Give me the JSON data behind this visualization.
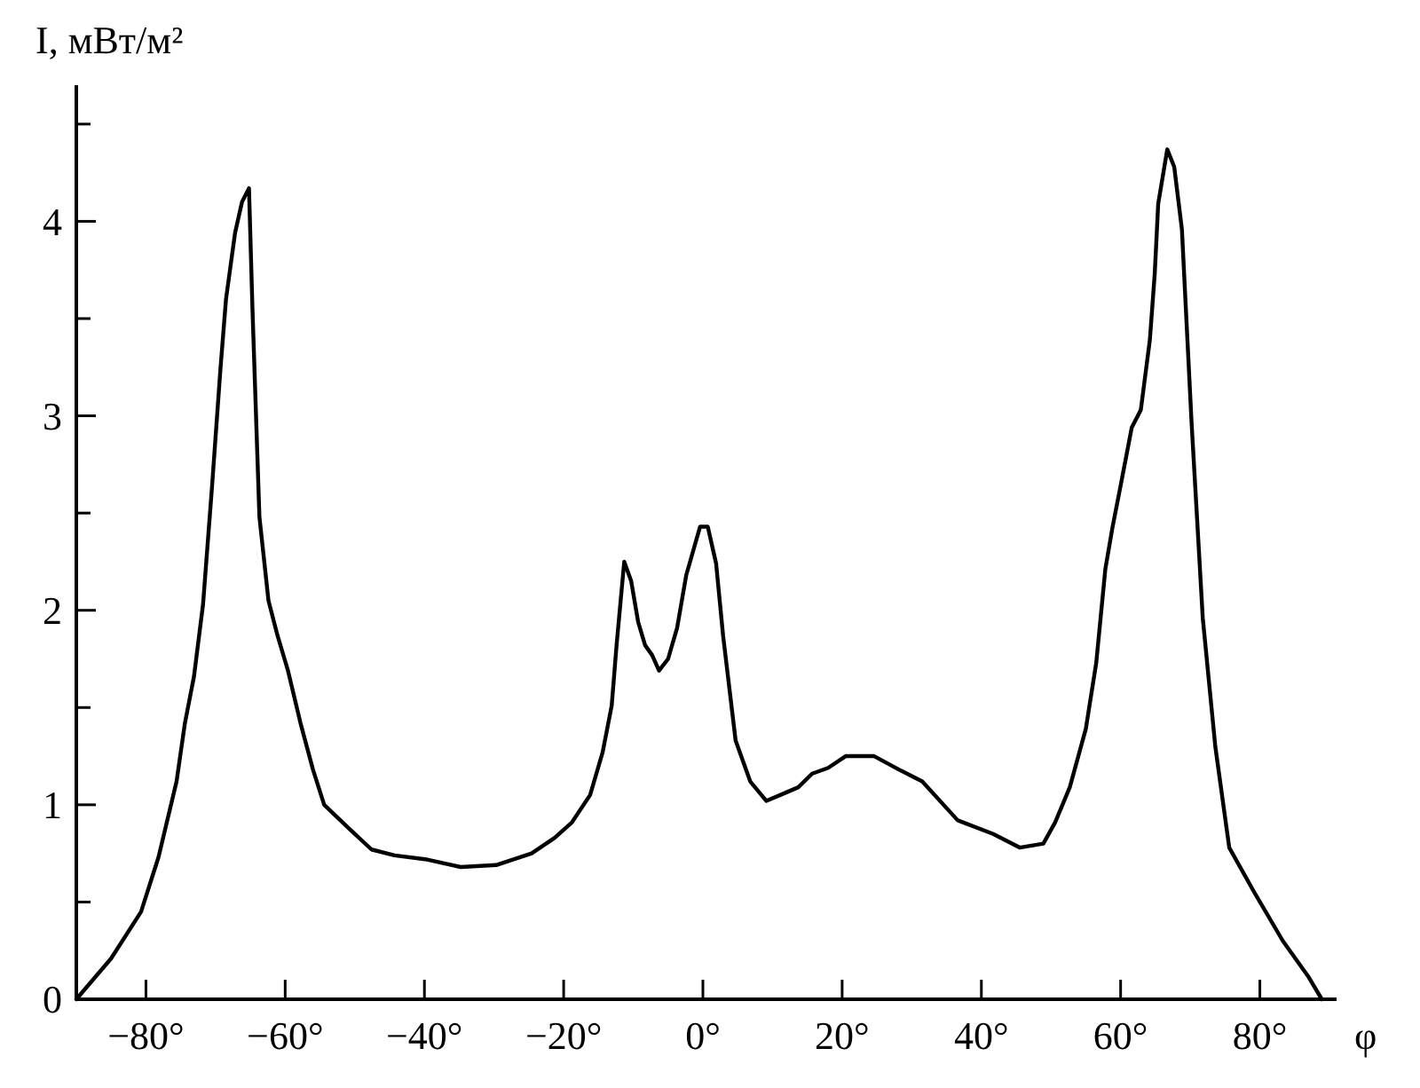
{
  "chart_data": {
    "type": "line",
    "ylabel": "I, мВт/м²",
    "xlabel": "φ",
    "x": [
      -90,
      -85,
      -80.7,
      -78.2,
      -75.6,
      -74.4,
      -73.1,
      -71.8,
      -70.5,
      -69.3,
      -68.5,
      -67.2,
      -66.2,
      -65.2,
      -64.7,
      -63.7,
      -62.4,
      -61.1,
      -59.6,
      -57.8,
      -56,
      -54.4,
      -50.9,
      -47.6,
      -44.3,
      -39.9,
      -34.8,
      -29.7,
      -24.6,
      -21.3,
      -18.8,
      -16.2,
      -14.4,
      -13.1,
      -12.4,
      -11.3,
      -10.3,
      -9.3,
      -8.3,
      -7.3,
      -6.3,
      -5,
      -3.7,
      -2.4,
      -0.4,
      0.7,
      1.9,
      2.9,
      4.7,
      6.8,
      9.1,
      11.1,
      13.7,
      15.7,
      18,
      20.5,
      24.6,
      28.2,
      31.5,
      36.6,
      41.7,
      45.5,
      48.9,
      50.6,
      52.7,
      55,
      56.5,
      57.8,
      58.8,
      60.1,
      61.6,
      62.9,
      64.2,
      64.9,
      65.4,
      66.7,
      67.7,
      68.8,
      70.2,
      71.8,
      73.6,
      75.6,
      79.2,
      83.3,
      86.9,
      88.9
    ],
    "series": [
      {
        "color": "#000000",
        "values": [
          0,
          0.21,
          0.45,
          0.73,
          1.12,
          1.42,
          1.66,
          2.03,
          2.64,
          3.24,
          3.6,
          3.94,
          4.1,
          4.17,
          3.55,
          2.48,
          2.05,
          1.87,
          1.69,
          1.42,
          1.18,
          1,
          0.88,
          0.77,
          0.74,
          0.72,
          0.68,
          0.69,
          0.75,
          0.83,
          0.91,
          1.05,
          1.27,
          1.51,
          1.82,
          2.25,
          2.15,
          1.94,
          1.82,
          1.77,
          1.69,
          1.75,
          1.91,
          2.18,
          2.43,
          2.43,
          2.24,
          1.87,
          1.33,
          1.12,
          1.02,
          1.05,
          1.09,
          1.16,
          1.19,
          1.25,
          1.25,
          1.18,
          1.12,
          0.92,
          0.85,
          0.78,
          0.8,
          0.91,
          1.09,
          1.39,
          1.73,
          2.21,
          2.42,
          2.66,
          2.94,
          3.03,
          3.39,
          3.73,
          4.09,
          4.37,
          4.28,
          3.96,
          2.96,
          1.96,
          1.3,
          0.78,
          0.55,
          0.3,
          0.12,
          0
        ]
      }
    ],
    "xlim": [
      -90,
      90
    ],
    "ylim": [
      0,
      4.7
    ],
    "xticks": [
      {
        "value": -80,
        "label": "−80°"
      },
      {
        "value": -60,
        "label": "−60°"
      },
      {
        "value": -40,
        "label": "−40°"
      },
      {
        "value": -20,
        "label": "−20°"
      },
      {
        "value": 0,
        "label": "0°"
      },
      {
        "value": 20,
        "label": "20°"
      },
      {
        "value": 40,
        "label": "40°"
      },
      {
        "value": 60,
        "label": "60°"
      },
      {
        "value": 80,
        "label": "80°"
      }
    ],
    "yticks": [
      0,
      {
        "value": 0.5,
        "label": null
      },
      1,
      {
        "value": 1.5,
        "label": null
      },
      2,
      {
        "value": 2.5,
        "label": null
      },
      3,
      {
        "value": 3.5,
        "label": null
      },
      4,
      {
        "value": 4.5,
        "label": null
      }
    ],
    "grid": false,
    "line_style": "solid",
    "marker": "none"
  }
}
